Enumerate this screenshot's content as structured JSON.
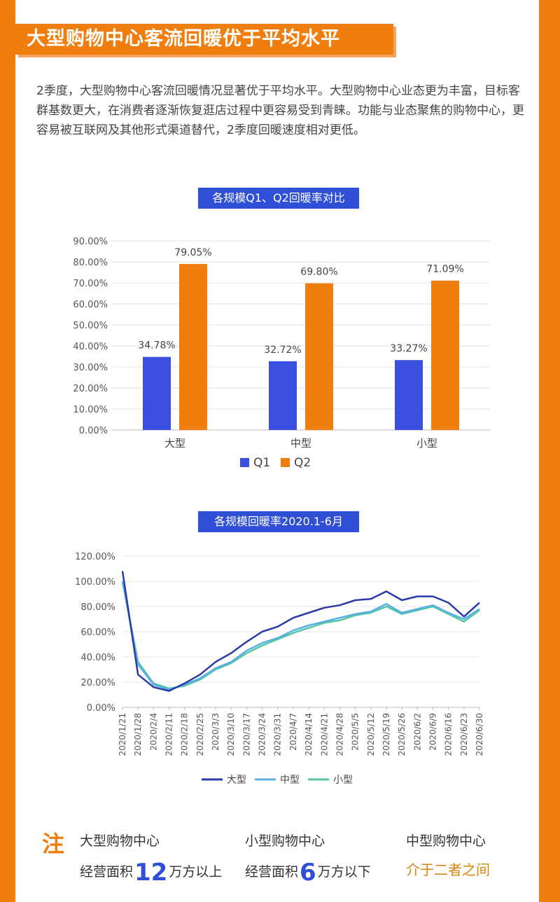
{
  "header": {
    "title": "大型购物中心客流回暖优于平均水平",
    "intro": "2季度，大型购物中心客流回暖情况显著优于平均水平。大型购物中心业态更为丰富，目标客群基数更大，在消费者逐渐恢复逛店过程中更容易受到青睐。功能与业态聚焦的购物中心，更容易被互联网及其他形式渠道替代，2季度回暖速度相对更低。"
  },
  "colors": {
    "accent": "#f07e0f",
    "title_bg": "#2f4fd6",
    "q1": "#3a4fe0",
    "q2": "#f07e0f",
    "large": "#2a3aa8",
    "medium": "#5aaee6",
    "small": "#52c7a4"
  },
  "chart_data": [
    {
      "type": "bar",
      "title": "各规模Q1、Q2回暖率对比",
      "categories": [
        "大型",
        "中型",
        "小型"
      ],
      "series": [
        {
          "name": "Q1",
          "values": [
            34.78,
            32.72,
            33.27
          ],
          "labels": [
            "34.78%",
            "32.72%",
            "33.27%"
          ]
        },
        {
          "name": "Q2",
          "values": [
            79.05,
            69.8,
            71.09
          ],
          "labels": [
            "79.05%",
            "69.80%",
            "71.09%"
          ]
        }
      ],
      "ylim": [
        0,
        90
      ],
      "yticks": [
        "0.00%",
        "10.00%",
        "20.00%",
        "30.00%",
        "40.00%",
        "50.00%",
        "60.00%",
        "70.00%",
        "80.00%",
        "90.00%"
      ],
      "legend": "bottom"
    },
    {
      "type": "line",
      "title": "各规模回暖率2020.1-6月",
      "x": [
        "2020/1/21",
        "2020/1/28",
        "2020/2/4",
        "2020/2/11",
        "2020/2/18",
        "2020/2/25",
        "2020/3/3",
        "2020/3/10",
        "2020/3/17",
        "2020/3/24",
        "2020/3/31",
        "2020/4/7",
        "2020/4/14",
        "2020/4/21",
        "2020/4/28",
        "2020/5/5",
        "2020/5/12",
        "2020/5/19",
        "2020/5/26",
        "2020/6/2",
        "2020/6/9",
        "2020/6/16",
        "2020/6/23",
        "2020/6/30"
      ],
      "series": [
        {
          "name": "大型",
          "values": [
            108,
            26,
            16,
            13,
            19,
            26,
            36,
            43,
            52,
            60,
            64,
            71,
            75,
            79,
            81,
            85,
            86,
            92,
            85,
            88,
            88,
            83,
            72,
            83
          ]
        },
        {
          "name": "中型",
          "values": [
            100,
            34,
            18,
            14,
            18,
            23,
            31,
            36,
            45,
            51,
            55,
            61,
            65,
            68,
            71,
            74,
            76,
            82,
            75,
            78,
            81,
            75,
            70,
            78
          ]
        },
        {
          "name": "小型",
          "values": [
            100,
            36,
            19,
            15,
            17,
            22,
            30,
            35,
            43,
            49,
            54,
            59,
            63,
            67,
            69,
            73,
            75,
            80,
            74,
            77,
            80,
            74,
            68,
            77
          ]
        }
      ],
      "ylim": [
        0,
        120
      ],
      "yticks": [
        "0.00%",
        "20.00%",
        "40.00%",
        "60.00%",
        "80.00%",
        "100.00%",
        "120.00%"
      ],
      "legend": "bottom"
    }
  ],
  "note": {
    "mark": "注",
    "large_head": "大型购物中心",
    "large_pre": "经营面积",
    "large_num": "12",
    "large_post": "万方以上",
    "small_head": "小型购物中心",
    "small_pre": "经营面积",
    "small_num": "6",
    "small_post": "万方以下",
    "medium_head": "中型购物中心",
    "medium_desc": "介于二者之间"
  }
}
